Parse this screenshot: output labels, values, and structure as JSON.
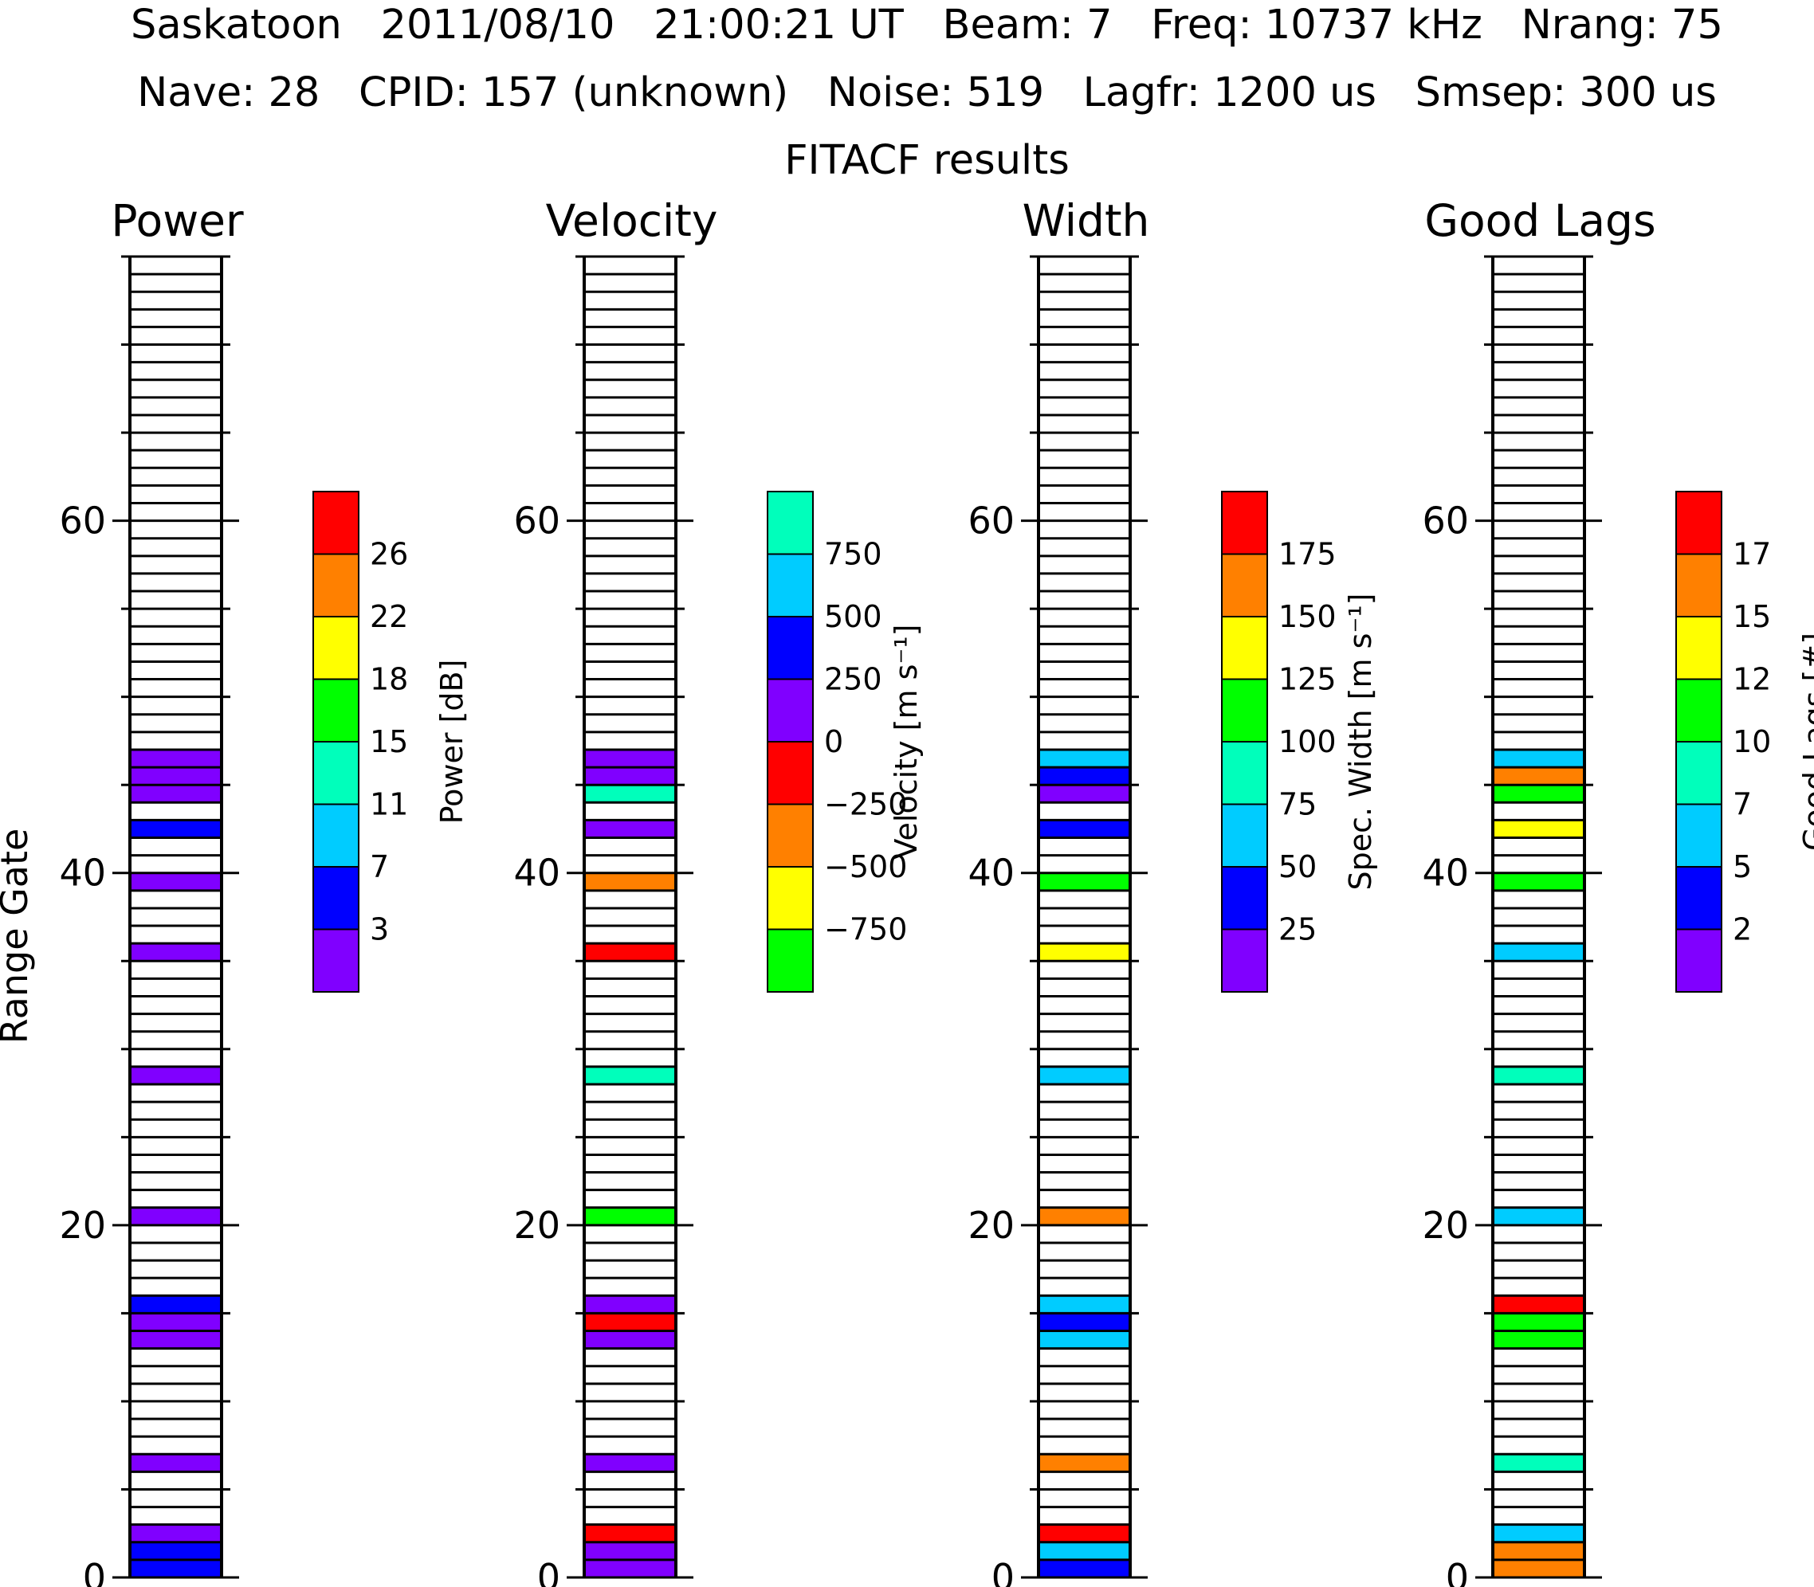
{
  "header": {
    "line1": "Saskatoon   2011/08/10   21:00:21 UT   Beam: 7   Freq: 10737 kHz   Nrang: 75",
    "line2": "Nave: 28   CPID: 157 (unknown)   Noise: 519   Lagfr: 1200 us   Smsep: 300 us",
    "line3": "FITACF results"
  },
  "colors": {
    "purple": "#8000ff",
    "blue": "#0000ff",
    "cyan": "#00ccff",
    "aqua": "#00ffbb",
    "green": "#00ff00",
    "yellow": "#ffff00",
    "orange": "#ff8000",
    "red": "#ff0000"
  },
  "chart_data": {
    "type": "heatmap",
    "ylabel": "Range Gate",
    "n_gates": 75,
    "ylim": [
      0,
      75
    ],
    "y_ticks": [
      0,
      20,
      40,
      60
    ],
    "panels": [
      {
        "title": "Power",
        "colorbar_label": "Power [dB]",
        "colorbar_colors": [
          "purple",
          "blue",
          "cyan",
          "aqua",
          "green",
          "yellow",
          "orange",
          "red"
        ],
        "colorbar_ticks": [
          "3",
          "7",
          "11",
          "15",
          "18",
          "22",
          "26"
        ],
        "cells": [
          {
            "gate": 0,
            "color": "blue"
          },
          {
            "gate": 1,
            "color": "blue"
          },
          {
            "gate": 2,
            "color": "purple"
          },
          {
            "gate": 6,
            "color": "purple"
          },
          {
            "gate": 13,
            "color": "purple"
          },
          {
            "gate": 14,
            "color": "purple"
          },
          {
            "gate": 15,
            "color": "blue"
          },
          {
            "gate": 20,
            "color": "purple"
          },
          {
            "gate": 28,
            "color": "purple"
          },
          {
            "gate": 35,
            "color": "purple"
          },
          {
            "gate": 39,
            "color": "purple"
          },
          {
            "gate": 42,
            "color": "blue"
          },
          {
            "gate": 44,
            "color": "purple"
          },
          {
            "gate": 45,
            "color": "purple"
          },
          {
            "gate": 46,
            "color": "purple"
          }
        ]
      },
      {
        "title": "Velocity",
        "colorbar_label": "Velocity [m s⁻¹]",
        "colorbar_colors": [
          "green",
          "yellow",
          "orange",
          "red",
          "purple",
          "blue",
          "cyan",
          "aqua"
        ],
        "colorbar_ticks": [
          "−750",
          "−500",
          "−250",
          "0",
          "250",
          "500",
          "750"
        ],
        "cells": [
          {
            "gate": 0,
            "color": "purple"
          },
          {
            "gate": 1,
            "color": "purple"
          },
          {
            "gate": 2,
            "color": "red"
          },
          {
            "gate": 6,
            "color": "purple"
          },
          {
            "gate": 13,
            "color": "purple"
          },
          {
            "gate": 14,
            "color": "red"
          },
          {
            "gate": 15,
            "color": "purple"
          },
          {
            "gate": 20,
            "color": "green"
          },
          {
            "gate": 28,
            "color": "aqua"
          },
          {
            "gate": 35,
            "color": "red"
          },
          {
            "gate": 39,
            "color": "orange"
          },
          {
            "gate": 42,
            "color": "purple"
          },
          {
            "gate": 44,
            "color": "aqua"
          },
          {
            "gate": 45,
            "color": "purple"
          },
          {
            "gate": 46,
            "color": "purple"
          }
        ]
      },
      {
        "title": "Width",
        "colorbar_label": "Spec. Width [m s⁻¹]",
        "colorbar_colors": [
          "purple",
          "blue",
          "cyan",
          "aqua",
          "green",
          "yellow",
          "orange",
          "red"
        ],
        "colorbar_ticks": [
          "25",
          "50",
          "75",
          "100",
          "125",
          "150",
          "175"
        ],
        "cells": [
          {
            "gate": 0,
            "color": "blue"
          },
          {
            "gate": 1,
            "color": "cyan"
          },
          {
            "gate": 2,
            "color": "red"
          },
          {
            "gate": 6,
            "color": "orange"
          },
          {
            "gate": 13,
            "color": "cyan"
          },
          {
            "gate": 14,
            "color": "blue"
          },
          {
            "gate": 15,
            "color": "cyan"
          },
          {
            "gate": 20,
            "color": "orange"
          },
          {
            "gate": 28,
            "color": "cyan"
          },
          {
            "gate": 35,
            "color": "yellow"
          },
          {
            "gate": 39,
            "color": "green"
          },
          {
            "gate": 42,
            "color": "blue"
          },
          {
            "gate": 44,
            "color": "purple"
          },
          {
            "gate": 45,
            "color": "blue"
          },
          {
            "gate": 46,
            "color": "cyan"
          }
        ]
      },
      {
        "title": "Good Lags",
        "colorbar_label": "Good Lags [#]",
        "colorbar_colors": [
          "purple",
          "blue",
          "cyan",
          "aqua",
          "green",
          "yellow",
          "orange",
          "red"
        ],
        "colorbar_ticks": [
          "2",
          "5",
          "7",
          "10",
          "12",
          "15",
          "17"
        ],
        "cells": [
          {
            "gate": 0,
            "color": "orange"
          },
          {
            "gate": 1,
            "color": "orange"
          },
          {
            "gate": 2,
            "color": "cyan"
          },
          {
            "gate": 6,
            "color": "aqua"
          },
          {
            "gate": 13,
            "color": "green"
          },
          {
            "gate": 14,
            "color": "green"
          },
          {
            "gate": 15,
            "color": "red"
          },
          {
            "gate": 20,
            "color": "cyan"
          },
          {
            "gate": 28,
            "color": "aqua"
          },
          {
            "gate": 35,
            "color": "cyan"
          },
          {
            "gate": 39,
            "color": "green"
          },
          {
            "gate": 42,
            "color": "yellow"
          },
          {
            "gate": 44,
            "color": "green"
          },
          {
            "gate": 45,
            "color": "orange"
          },
          {
            "gate": 46,
            "color": "cyan"
          }
        ]
      }
    ]
  }
}
